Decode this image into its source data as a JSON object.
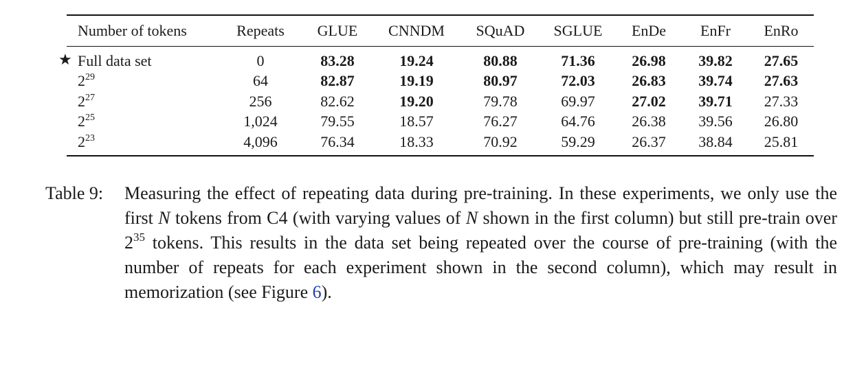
{
  "table": {
    "headers": [
      "Number of tokens",
      "Repeats",
      "GLUE",
      "CNNDM",
      "SQuAD",
      "SGLUE",
      "EnDe",
      "EnFr",
      "EnRo"
    ],
    "rows": [
      {
        "star": "★",
        "label": "Full data set",
        "exp": "",
        "cells": [
          {
            "v": "0",
            "b": false
          },
          {
            "v": "83.28",
            "b": true
          },
          {
            "v": "19.24",
            "b": true
          },
          {
            "v": "80.88",
            "b": true
          },
          {
            "v": "71.36",
            "b": true
          },
          {
            "v": "26.98",
            "b": true
          },
          {
            "v": "39.82",
            "b": true
          },
          {
            "v": "27.65",
            "b": true
          }
        ]
      },
      {
        "star": "",
        "label": "2",
        "exp": "29",
        "cells": [
          {
            "v": "64",
            "b": false
          },
          {
            "v": "82.87",
            "b": true
          },
          {
            "v": "19.19",
            "b": true
          },
          {
            "v": "80.97",
            "b": true
          },
          {
            "v": "72.03",
            "b": true
          },
          {
            "v": "26.83",
            "b": true
          },
          {
            "v": "39.74",
            "b": true
          },
          {
            "v": "27.63",
            "b": true
          }
        ]
      },
      {
        "star": "",
        "label": "2",
        "exp": "27",
        "cells": [
          {
            "v": "256",
            "b": false
          },
          {
            "v": "82.62",
            "b": false
          },
          {
            "v": "19.20",
            "b": true
          },
          {
            "v": "79.78",
            "b": false
          },
          {
            "v": "69.97",
            "b": false
          },
          {
            "v": "27.02",
            "b": true
          },
          {
            "v": "39.71",
            "b": true
          },
          {
            "v": "27.33",
            "b": false
          }
        ]
      },
      {
        "star": "",
        "label": "2",
        "exp": "25",
        "cells": [
          {
            "v": "1,024",
            "b": false
          },
          {
            "v": "79.55",
            "b": false
          },
          {
            "v": "18.57",
            "b": false
          },
          {
            "v": "76.27",
            "b": false
          },
          {
            "v": "64.76",
            "b": false
          },
          {
            "v": "26.38",
            "b": false
          },
          {
            "v": "39.56",
            "b": false
          },
          {
            "v": "26.80",
            "b": false
          }
        ]
      },
      {
        "star": "",
        "label": "2",
        "exp": "23",
        "cells": [
          {
            "v": "4,096",
            "b": false
          },
          {
            "v": "76.34",
            "b": false
          },
          {
            "v": "18.33",
            "b": false
          },
          {
            "v": "70.92",
            "b": false
          },
          {
            "v": "59.29",
            "b": false
          },
          {
            "v": "26.37",
            "b": false
          },
          {
            "v": "38.84",
            "b": false
          },
          {
            "v": "25.81",
            "b": false
          }
        ]
      }
    ]
  },
  "caption": {
    "label": "Table 9:",
    "part1": "Measuring the effect of repeating data during pre-training. In these experiments, we only use the first ",
    "var1": "N",
    "part2": " tokens from C4 (with varying values of ",
    "var2": "N",
    "part3": " shown in the first column) but still pre-train over ",
    "pow_base": "2",
    "pow_exp": "35",
    "part4": " tokens. This results in the data set being repeated over the course of pre-training (with the number of repeats for each experiment shown in the second column), which may result in memorization (see Figure ",
    "figure_ref": "6",
    "part5": ")."
  },
  "colors": {
    "link": "#1f3fb0"
  }
}
